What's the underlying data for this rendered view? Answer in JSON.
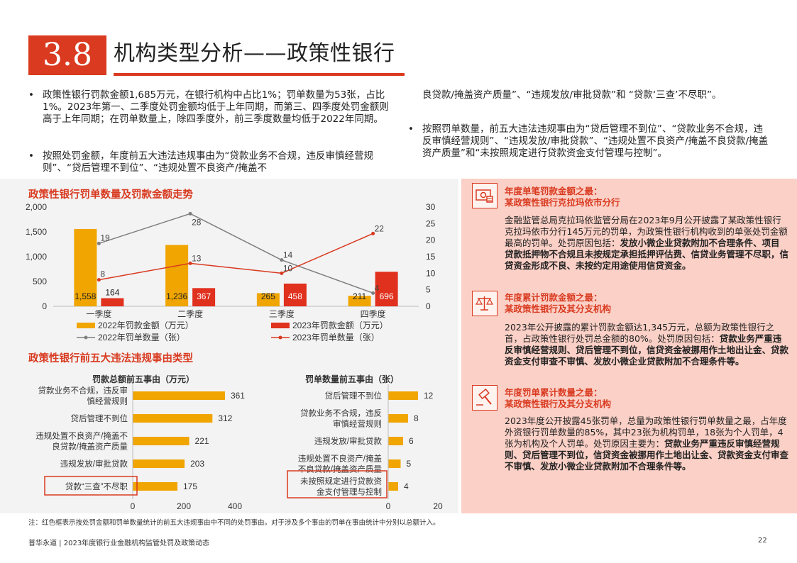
{
  "header": {
    "section_number": "3.8",
    "title": "机构类型分析——政策性银行"
  },
  "bullets_left": [
    "政策性银行罚款金额1,685万元，在银行机构中占比1%；罚单数量为53张，占比1%。2023年第一、二季度处罚金额均低于上年同期，而第三、四季度处罚金额则高于上年同期；在罚单数量上，除四季度外，前三季度数量均低于2022年同期。",
    "按照处罚金额，年度前五大违法违规事由为“贷款业务不合规，违反审慎经营规则”、“贷后管理不到位”、“违规处置不良资产/掩盖不"
  ],
  "bullets_right": [
    "良贷款/掩盖资产质量”、“违规发放/审批贷款”和 “贷款‘三查’不尽职”。",
    "按照罚单数量，前五大违法违规事由为“贷后管理不到位”、“贷款业务不合规，违反审慎经营规则”、“违规发放/审批贷款”、“违规处置不良资产/掩盖不良贷款/掩盖资产质量”和“未按照规定进行贷款资金支付管理与控制”。"
  ],
  "chart1": {
    "title": "政策性银行罚单数量及罚款金额走势",
    "categories": [
      "一季度",
      "二季度",
      "三季度",
      "四季度"
    ],
    "left_ticks": [
      "2,000",
      "1,500",
      "1,000",
      "500",
      "0"
    ],
    "right_ticks": [
      "30",
      "25",
      "20",
      "15",
      "10",
      "5",
      "0"
    ],
    "legend": {
      "bar2022": "2022年罚款金额（万元）",
      "bar2023": "2023年罚款金额（万元）",
      "line2022": "2022年罚单数量（张）",
      "line2023": "2023年罚单数量（张）"
    },
    "bar2022_values": [
      1558,
      1236,
      265,
      211
    ],
    "bar2022_labels": [
      "1,558",
      "1,236",
      "265",
      "211"
    ],
    "bar2023_values": [
      164,
      367,
      458,
      696
    ],
    "bar2023_labels": [
      "164",
      "367",
      "458",
      "696"
    ],
    "line2022_values": [
      19,
      28,
      14,
      4
    ],
    "line2022_labels": [
      "19",
      "28",
      "14",
      "4"
    ],
    "line2023_values": [
      8,
      13,
      10,
      22
    ],
    "line2023_labels": [
      "8",
      "13",
      "10",
      "22"
    ],
    "colors": {
      "bar2022": "#f0a500",
      "bar2023": "#e0301e",
      "line2022": "#7f7f7f",
      "line2023": "#d93a20"
    }
  },
  "chart2": {
    "title": "政策性银行前五大违法违规事由类型",
    "amount": {
      "subtitle": "罚款总额前五事由（万元）",
      "categories": [
        "贷款业务不合规，违反审慎经营规则",
        "贷后管理不到位",
        "违规处置不良资产/掩盖不良贷款/掩盖资产质量",
        "违规发放/审批贷款",
        "贷款“三查”不尽职"
      ],
      "category_lines": [
        [
          "贷款业务不合规，违反审",
          "慎经营规则"
        ],
        [
          "贷后管理不到位"
        ],
        [
          "违规处置不良资产/掩盖不",
          "良贷款/掩盖资产质量"
        ],
        [
          "违规发放/审批贷款"
        ],
        [
          "贷款“三查”不尽职"
        ]
      ],
      "values": [
        361,
        312,
        221,
        203,
        175
      ],
      "labels": [
        "361",
        "312",
        "221",
        "203",
        "175"
      ],
      "axis_ticks": [
        "0",
        "200",
        "400"
      ],
      "xmax": 400
    },
    "count": {
      "subtitle": "罚单数量前五事由（张）",
      "categories": [
        "贷后管理不到位",
        "贷款业务不合规，违反审慎经营规则",
        "违规发放/审批贷款",
        "违规处置不良资产/掩盖不良贷款/掩盖资产质量",
        "未按照规定进行贷款资金支付管理与控制"
      ],
      "category_lines": [
        [
          "贷后管理不到位"
        ],
        [
          "贷款业务不合规，违反",
          "审慎经营规则"
        ],
        [
          "违规发放/审批贷款"
        ],
        [
          "违规处置不良资产/掩盖",
          "不良贷款/掩盖资产质量"
        ],
        [
          "未按照规定进行贷款资",
          "金支付管理与控制"
        ]
      ],
      "values": [
        12,
        8,
        6,
        5,
        4
      ],
      "labels": [
        "12",
        "8",
        "6",
        "5",
        "4"
      ],
      "axis_ticks": [
        "0",
        "20"
      ],
      "xmax": 20
    },
    "bar_color": "#f0a500"
  },
  "highlights": [
    {
      "icon": "money-icon",
      "head1": "年度单笔罚款金额之最：",
      "head2": "某政策性银行克拉玛依市分行",
      "body_plain": "金融监管总局克拉玛依监管分局在2023年9月公开披露了某政策性银行克拉玛依市分行145万元的罚单，为政策性银行机构收到的单张处罚金额最高的罚单。处罚原因包括：",
      "body_bold": "发放小微企业贷款附加不合理条件、项目贷款抵押物不合规且未按规定承担抵押评估费、信贷业务管理不尽职，信贷资金形成不良、未按约定用途使用信贷资金。"
    },
    {
      "icon": "scales-icon",
      "head1": "年度累计罚款金额之最：",
      "head2": "某政策性银行及其分支机构",
      "body_plain": "2023年公开披露的累计罚款金额达1,345万元，总额为政策性银行之首，占政策性银行处罚总金额的80%。处罚原因包括：",
      "body_bold": "贷款业务严重违反审慎经营规则、贷后管理不到位，信贷资金被挪用作土地出让金、贷款资金支付审查不审慎、发放小微企业贷款附加不合理条件等。"
    },
    {
      "icon": "gavel-icon",
      "head1": "年度罚单累计数量之最：",
      "head2": "某政策性银行及其分支机构",
      "body_plain": "2023年度公开披露45张罚单，总量为政策性银行罚单数量之最，占年度外资银行罚单数量的85%，其中23张为机构罚单，18张为个人罚单，4张为机构及个人罚单。处罚原因主要为：",
      "body_bold": "贷款业务严重违反审慎经营规则、贷后管理不到位，信贷资金被挪用作土地出让金、贷款资金支付审查不审慎、发放小微企业贷款附加不合理条件等。"
    }
  ],
  "footnote": "注：红色框表示按处罚金额和罚单数量统计的前五大违规事由中不同的处罚事由。对于涉及多个事由的罚单在事由统计中分别以总额计入。",
  "footer": "普华永道 | 2023年度银行业金融机构监管处罚及政策动态",
  "page_number": "22"
}
